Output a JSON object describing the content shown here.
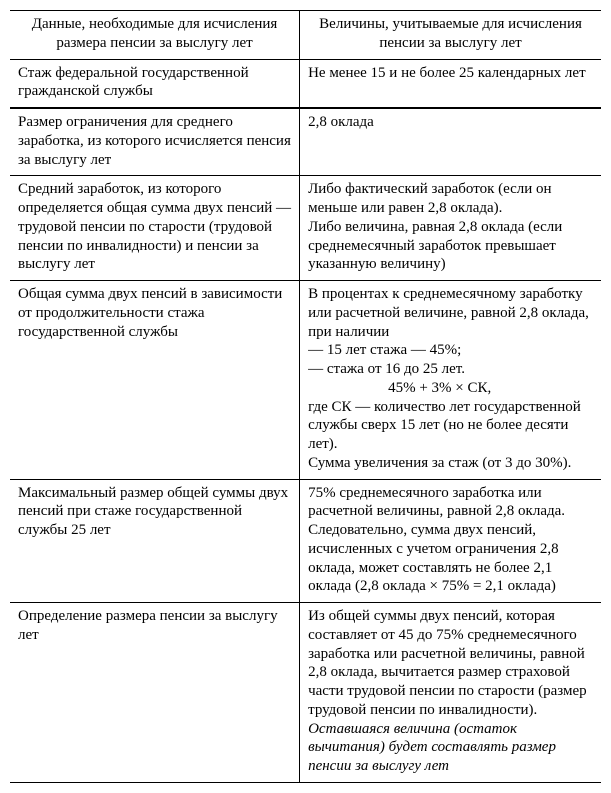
{
  "header": {
    "left": "Данные, необходимые для исчисления размера пенсии за выслугу лет",
    "right": "Величины, учитываемые для исчисления пенсии за выслугу лет"
  },
  "rows": {
    "r1": {
      "left": "Стаж федеральной государственной гражданской службы",
      "right": "Не менее 15 и не более 25 календарных лет"
    },
    "r2": {
      "left": "Размер ограничения для среднего заработка, из которого исчисляется пенсия за выслугу лет",
      "right": "2,8 оклада"
    },
    "r3": {
      "left": "Средний заработок, из которого определяется общая сумма двух пенсий — трудовой пенсии по старости (трудовой пенсии по инвалидности) и пенсии за выслугу лет",
      "right_l1": "Либо фактический заработок (если он меньше или равен 2,8 оклада).",
      "right_l2": "Либо величина, равная 2,8 оклада (если среднемесячный заработок превышает указанную величину)"
    },
    "r4": {
      "left": "Общая сумма двух пенсий в зависимости от продолжительности стажа государственной службы",
      "right_l1": "В процентах к среднемесячному заработку или расчетной величине, равной 2,8 оклада, при наличии",
      "right_l2": "— 15 лет стажа — 45%;",
      "right_l3": "— стажа от 16 до 25 лет.",
      "right_formula": "45% + 3% × СК,",
      "right_l4": "где СК — количество лет государственной службы сверх 15 лет (но не более десяти лет).",
      "right_l5": "Сумма увеличения за стаж (от 3 до 30%)."
    },
    "r5": {
      "left": "Максимальный размер общей суммы двух пенсий при стаже государственной службы 25 лет",
      "right_l1": "75% среднемесячного заработка или расчетной величины, равной 2,8 оклада.",
      "right_l2": "Следовательно, сумма двух пенсий, исчисленных с учетом ограничения 2,8 оклада, может составлять не более 2,1 оклада (2,8 оклада × 75% = 2,1 оклада)"
    },
    "r6": {
      "left": "Определение размера пенсии за выслугу лет",
      "right_l1": "Из общей суммы двух пенсий, которая составляет от 45 до 75% среднемесячного заработка или расчетной величины, равной 2,8 оклада, вычитается размер страховой части трудовой пенсии по старости (размер трудовой пенсии по инвалидности).",
      "right_l2": "Оставшаяся величина (остаток вычитания) будет составлять размер пенсии за выслугу лет"
    }
  }
}
